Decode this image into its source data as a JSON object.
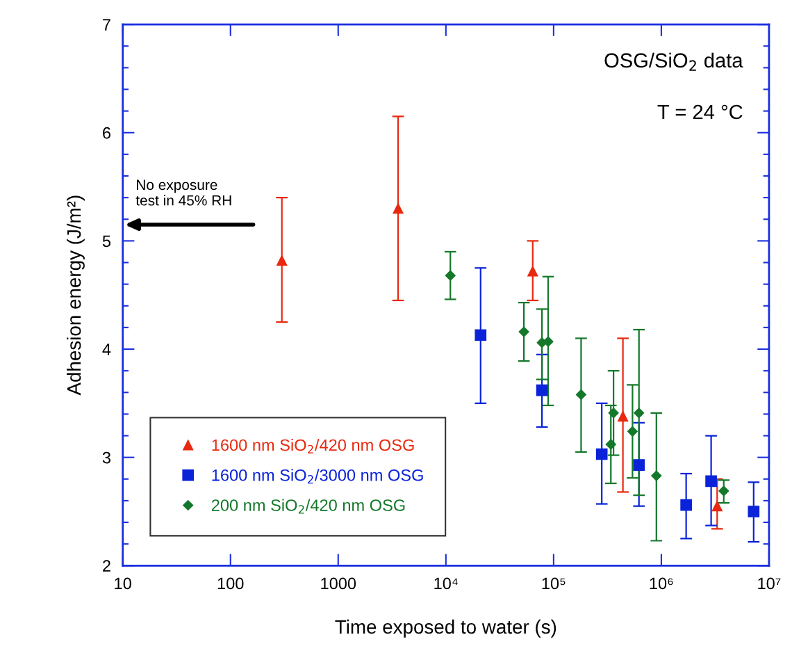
{
  "chart_data": {
    "type": "scatter",
    "xlabel": "Time exposed to water (s)",
    "ylabel": "Adhesion energy (J/m²)",
    "log": "x",
    "xlim": [
      10,
      10000000
    ],
    "xticks": [
      10,
      100,
      1000,
      {
        "value": 10000,
        "label": "10⁴"
      },
      {
        "value": 100000,
        "label": "10⁵"
      },
      {
        "value": 1000000,
        "label": "10⁶"
      },
      {
        "value": 10000000,
        "label": "10⁷"
      }
    ],
    "ylim": [
      2,
      7
    ],
    "yticks": [
      2,
      3,
      4,
      5,
      6,
      7
    ],
    "grid": false,
    "legend": "bottom left",
    "annotations": [
      "OSG/SiO$_{2}$ data",
      "T = 24 °C",
      "No exposure\ntest in 45% RH"
    ],
    "series": [
      {
        "name": "1600 nm SiO$_{2}$/420 nm OSG",
        "color": "#e8290f",
        "marker": "triangle",
        "x": [
          300,
          3600,
          64000,
          440000,
          3300000
        ],
        "values": [
          4.82,
          5.3,
          4.72,
          3.38,
          2.55
        ],
        "errors": [
          [
            4.25,
            5.4
          ],
          [
            4.45,
            6.15
          ],
          [
            4.45,
            5.0
          ],
          [
            2.68,
            4.1
          ],
          [
            2.34,
            2.8
          ]
        ]
      },
      {
        "name": "1600 nm SiO$_{2}$/3000 nm OSG",
        "color": "#0a23d9",
        "marker": "square",
        "x": [
          21000,
          78000,
          280000,
          620000,
          1700000,
          2900000,
          7200000
        ],
        "values": [
          4.13,
          3.62,
          3.03,
          2.93,
          2.56,
          2.78,
          2.5
        ],
        "errors": [
          [
            3.5,
            4.75
          ],
          [
            3.28,
            3.95
          ],
          [
            2.57,
            3.5
          ],
          [
            2.55,
            3.32
          ],
          [
            2.25,
            2.85
          ],
          [
            2.37,
            3.2
          ],
          [
            2.22,
            2.77
          ]
        ]
      },
      {
        "name": "200 nm SiO$_{2}$/420 nm OSG",
        "color": "#14782a",
        "marker": "diamond",
        "x": [
          11000,
          53000,
          78000,
          89000,
          180000,
          340000,
          360000,
          540000,
          620000,
          900000,
          3800000
        ],
        "values": [
          4.68,
          4.16,
          4.06,
          4.07,
          3.58,
          3.12,
          3.41,
          3.24,
          3.41,
          2.83,
          2.69
        ],
        "errors": [
          [
            4.46,
            4.9
          ],
          [
            3.89,
            4.43
          ],
          [
            3.72,
            4.37
          ],
          [
            3.48,
            4.67
          ],
          [
            3.05,
            4.1
          ],
          [
            2.76,
            3.48
          ],
          [
            3.02,
            3.8
          ],
          [
            2.81,
            3.67
          ],
          [
            2.65,
            4.18
          ],
          [
            2.23,
            3.41
          ],
          [
            2.58,
            2.79
          ]
        ]
      }
    ]
  }
}
